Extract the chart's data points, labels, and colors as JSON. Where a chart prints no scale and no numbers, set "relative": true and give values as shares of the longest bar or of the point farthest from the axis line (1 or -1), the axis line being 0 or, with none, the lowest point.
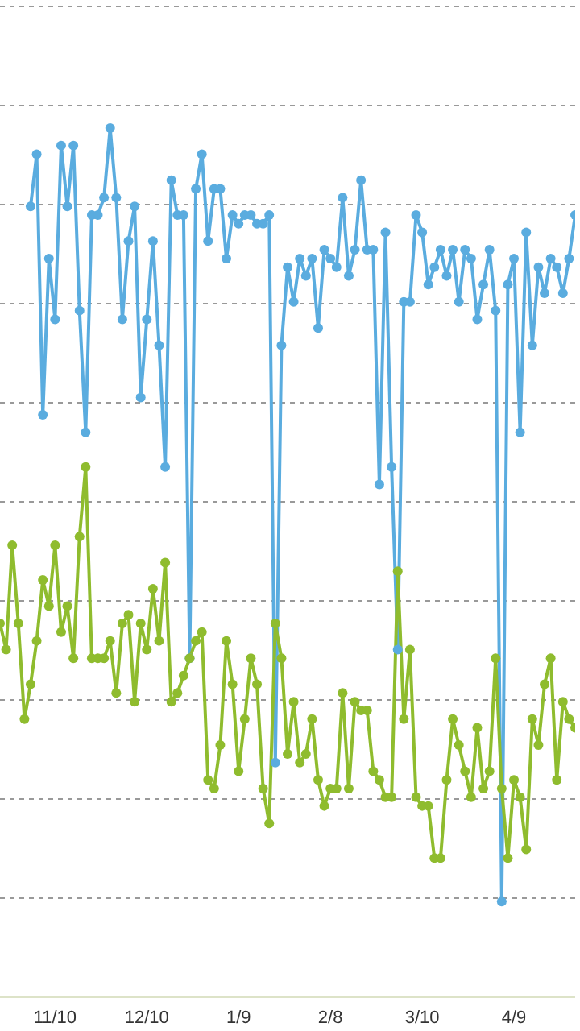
{
  "chart_data": {
    "type": "line",
    "relative": true,
    "grid": "y",
    "marker": "circle",
    "line_style": "solid",
    "legend": false,
    "categories": [
      null,
      null,
      null,
      null,
      null,
      null,
      null,
      null,
      null,
      "11/10",
      null,
      null,
      null,
      null,
      null,
      null,
      null,
      null,
      null,
      null,
      null,
      null,
      null,
      null,
      "12/10",
      null,
      null,
      null,
      null,
      null,
      null,
      null,
      null,
      null,
      null,
      null,
      null,
      null,
      null,
      "1/9",
      null,
      null,
      null,
      null,
      null,
      null,
      null,
      null,
      null,
      null,
      null,
      null,
      null,
      null,
      "2/8",
      null,
      null,
      null,
      null,
      null,
      null,
      null,
      null,
      null,
      null,
      null,
      null,
      null,
      null,
      "3/10",
      null,
      null,
      null,
      null,
      null,
      null,
      null,
      null,
      null,
      null,
      null,
      null,
      null,
      null,
      "4/9",
      null,
      null,
      null,
      null,
      null,
      null,
      null,
      null,
      null,
      null
    ],
    "series": [
      {
        "color": "#5aacdf",
        "values": [
          null,
          null,
          null,
          null,
          null,
          0.91,
          0.97,
          0.67,
          0.85,
          0.78,
          0.98,
          0.91,
          0.98,
          0.79,
          0.65,
          0.9,
          0.9,
          0.92,
          1,
          0.92,
          0.78,
          0.87,
          0.91,
          0.69,
          0.78,
          0.87,
          0.75,
          0.61,
          0.94,
          0.9,
          0.9,
          0.39,
          0.93,
          0.97,
          0.87,
          0.93,
          0.93,
          0.85,
          0.9,
          0.89,
          0.9,
          0.9,
          0.89,
          0.89,
          0.9,
          0.27,
          0.75,
          0.84,
          0.8,
          0.85,
          0.83,
          0.85,
          0.77,
          0.86,
          0.85,
          0.84,
          0.92,
          0.83,
          0.86,
          0.94,
          0.86,
          0.86,
          0.59,
          0.88,
          0.61,
          0.4,
          0.8,
          0.8,
          0.9,
          0.88,
          0.82,
          0.84,
          0.86,
          0.83,
          0.86,
          0.8,
          0.86,
          0.85,
          0.78,
          0.82,
          0.86,
          0.79,
          0.11,
          0.82,
          0.85,
          0.65,
          0.88,
          0.75,
          0.84,
          0.81,
          0.85,
          0.84,
          0.81,
          0.85,
          0.9
        ]
      },
      {
        "color": "#8fbc2e",
        "values": [
          0.43,
          0.4,
          0.52,
          0.43,
          0.32,
          0.36,
          0.41,
          0.48,
          0.45,
          0.52,
          0.42,
          0.45,
          0.39,
          0.53,
          0.61,
          0.39,
          0.39,
          0.39,
          0.41,
          0.35,
          0.43,
          0.44,
          0.34,
          0.43,
          0.4,
          0.47,
          0.41,
          0.5,
          0.34,
          0.35,
          0.37,
          0.39,
          0.41,
          0.42,
          0.25,
          0.24,
          0.29,
          0.41,
          0.36,
          0.26,
          0.32,
          0.39,
          0.36,
          0.24,
          0.2,
          0.43,
          0.39,
          0.28,
          0.34,
          0.27,
          0.28,
          0.32,
          0.25,
          0.22,
          0.24,
          0.24,
          0.35,
          0.24,
          0.34,
          0.33,
          0.33,
          0.26,
          0.25,
          0.23,
          0.23,
          0.49,
          0.32,
          0.4,
          0.23,
          0.22,
          0.22,
          0.16,
          0.16,
          0.25,
          0.32,
          0.29,
          0.26,
          0.23,
          0.31,
          0.24,
          0.26,
          0.39,
          0.24,
          0.16,
          0.25,
          0.23,
          0.17,
          0.32,
          0.29,
          0.36,
          0.39,
          0.25,
          0.34,
          0.32,
          0.31
        ]
      }
    ]
  }
}
